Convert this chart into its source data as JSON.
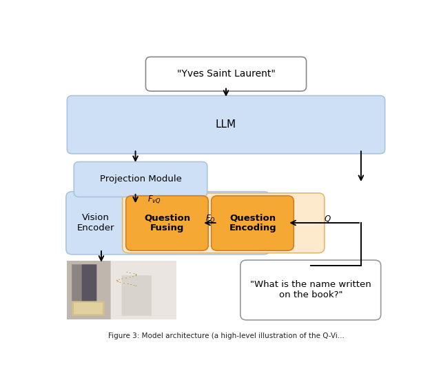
{
  "title_text": "\"Yves Saint Laurent\"",
  "llm_label": "LLM",
  "proj_label": "Projection Module",
  "fvq_label": "$\\mathit{F}_{vQ}$",
  "vision_label": "Vision\nEncoder",
  "qfuse_label": "Question\nFusing",
  "qenc_label": "Question\nEncoding",
  "fq_label": "$\\mathit{F}_{Q}$",
  "q_label": "$Q$",
  "question_text": "\"What is the name written\non the book?\"",
  "caption": "Figure 3: Model architecture (a high-level illustration of the Q-Vi...",
  "bg_color": "#ffffff",
  "llm_box_color": "#cde0f5",
  "proj_box_color": "#cde0f5",
  "vision_box_color": "#cde0f5",
  "orange_box_color": "#f5a833",
  "orange_bg_color": "#fde9cc",
  "question_box_color": "#ffffff",
  "figsize": [
    6.4,
    5.61
  ],
  "dpi": 100
}
